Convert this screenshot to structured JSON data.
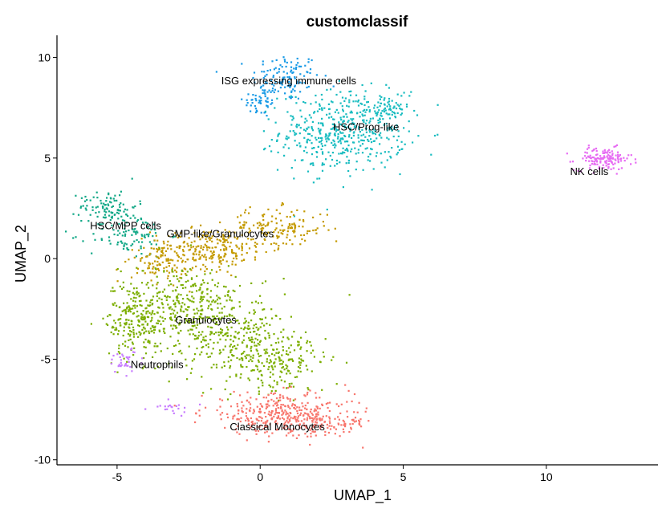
{
  "chart_data": {
    "type": "scatter",
    "title": "customclassif",
    "xlabel": "UMAP_1",
    "ylabel": "UMAP_2",
    "xlim": [
      -7.1,
      13.9
    ],
    "ylim": [
      -10.25,
      11.1
    ],
    "xticks": [
      -5,
      0,
      5,
      10
    ],
    "yticks": [
      -10,
      -5,
      0,
      5,
      10
    ],
    "grid": false,
    "legend": "none",
    "series": [
      {
        "name": "ISG expressing immune cells",
        "color": "#1a9be6",
        "label_pos": [
          1,
          8.8
        ],
        "clusters": [
          {
            "center": [
              0.9,
              9.0
            ],
            "spread": [
              0.6,
              0.6
            ],
            "count": 120
          },
          {
            "center": [
              0.0,
              7.8
            ],
            "spread": [
              0.3,
              0.4
            ],
            "count": 50
          }
        ]
      },
      {
        "name": "HSC/Prog-like",
        "color": "#18bcc0",
        "label_pos": [
          3.7,
          6.5
        ],
        "clusters": [
          {
            "center": [
              2.9,
              6.3
            ],
            "spread": [
              1.1,
              1.0
            ],
            "count": 480
          },
          {
            "center": [
              4.4,
              7.3
            ],
            "spread": [
              0.4,
              0.5
            ],
            "count": 60
          }
        ]
      },
      {
        "name": "NK cells",
        "color": "#e76bf3",
        "label_pos": [
          11.5,
          4.3
        ],
        "clusters": [
          {
            "center": [
              12.0,
              4.95
            ],
            "spread": [
              0.5,
              0.28
            ],
            "count": 140
          }
        ]
      },
      {
        "name": "HSC/MPP cells",
        "color": "#12a887",
        "label_pos": [
          -4.7,
          1.6
        ],
        "clusters": [
          {
            "center": [
              -5.3,
              2.6
            ],
            "spread": [
              0.5,
              0.4
            ],
            "count": 90
          },
          {
            "center": [
              -4.6,
              1.2
            ],
            "spread": [
              0.7,
              0.6
            ],
            "count": 110
          }
        ]
      },
      {
        "name": "GMP-like/Granulocytes",
        "color": "#c49a00",
        "label_pos": [
          -1.4,
          1.2
        ],
        "clusters": [
          {
            "center": [
              -1.8,
              0.5
            ],
            "spread": [
              1.0,
              0.5
            ],
            "count": 250
          },
          {
            "center": [
              0.6,
              1.5
            ],
            "spread": [
              0.9,
              0.5
            ],
            "count": 150
          },
          {
            "center": [
              -3.5,
              -0.2
            ],
            "spread": [
              0.5,
              0.5
            ],
            "count": 80
          }
        ]
      },
      {
        "name": "Granulocytes",
        "color": "#7cae00",
        "label_pos": [
          -1.9,
          -3.1
        ],
        "clusters": [
          {
            "center": [
              -4.4,
              -3.0
            ],
            "spread": [
              0.5,
              1.0
            ],
            "count": 220
          },
          {
            "center": [
              -2.5,
              -2.5
            ],
            "spread": [
              0.9,
              1.1
            ],
            "count": 350
          },
          {
            "center": [
              -0.5,
              -4.2
            ],
            "spread": [
              1.0,
              1.1
            ],
            "count": 280
          },
          {
            "center": [
              0.9,
              -5.3
            ],
            "spread": [
              0.7,
              0.7
            ],
            "count": 120
          }
        ]
      },
      {
        "name": "Neutrophils",
        "color": "#c77cff",
        "label_pos": [
          -3.6,
          -5.3
        ],
        "clusters": [
          {
            "center": [
              -4.7,
              -5.1
            ],
            "spread": [
              0.35,
              0.3
            ],
            "count": 35
          },
          {
            "center": [
              -3.0,
              -7.4
            ],
            "spread": [
              0.4,
              0.2
            ],
            "count": 20
          }
        ]
      },
      {
        "name": "Classical Monocytes",
        "color": "#f8766d",
        "label_pos": [
          0.6,
          -8.4
        ],
        "clusters": [
          {
            "center": [
              0.6,
              -7.7
            ],
            "spread": [
              1.3,
              0.5
            ],
            "count": 320
          },
          {
            "center": [
              2.1,
              -8.2
            ],
            "spread": [
              0.9,
              0.35
            ],
            "count": 120
          }
        ]
      }
    ]
  }
}
